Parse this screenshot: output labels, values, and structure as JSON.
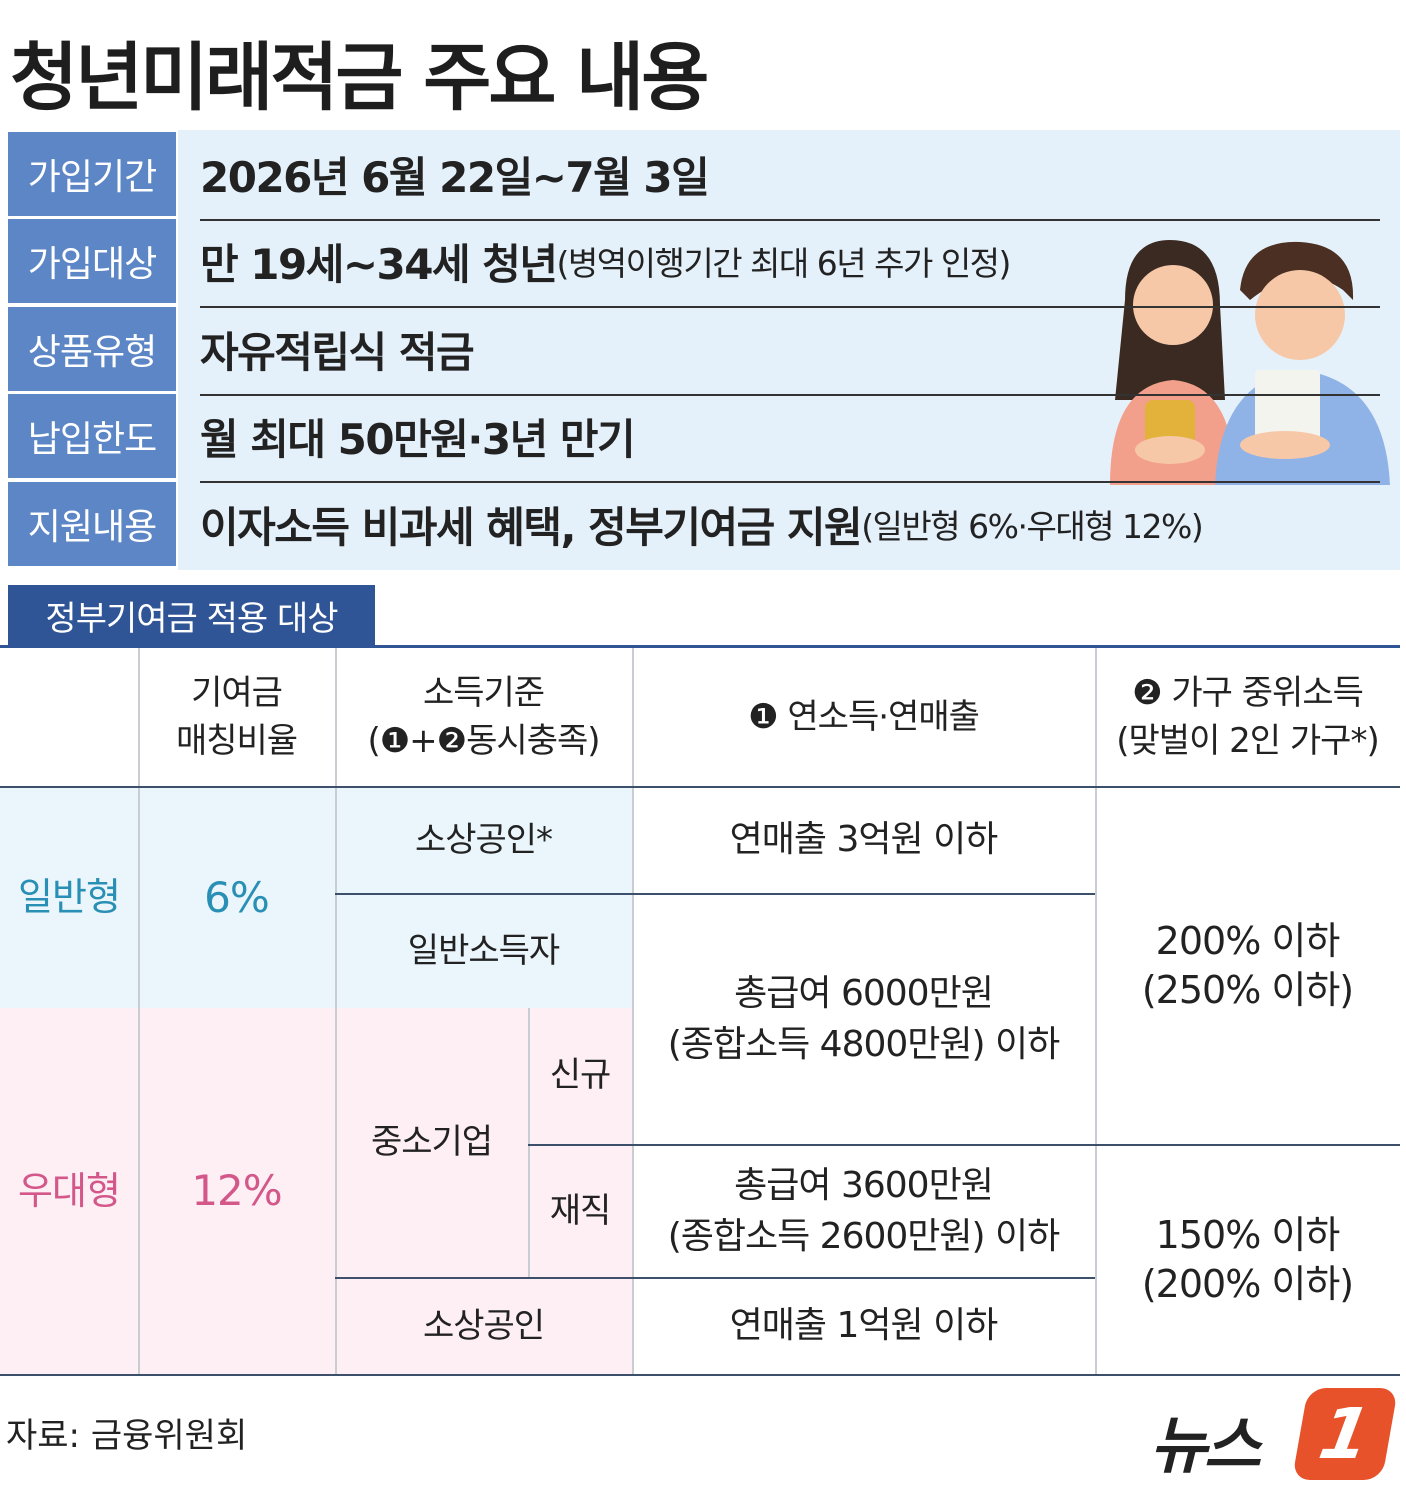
{
  "title": "청년미래적금 주요 내용",
  "summary": [
    {
      "label": "가입기간",
      "text": "2026년 6월 22일~7월 3일"
    },
    {
      "label": "가입대상",
      "text": "만 19세~34세 청년",
      "note": "(병역이행기간 최대 6년 추가 인정)"
    },
    {
      "label": "상품유형",
      "text": "자유적립식 적금"
    },
    {
      "label": "납입한도",
      "text": "월 최대 50만원·3년 만기"
    },
    {
      "label": "지원내용",
      "text": "이자소득 비과세 혜택, 정부기여금 지원",
      "note": "(일반형 6%·우대형 12%)"
    }
  ],
  "section_tab": "정부기여금 적용 대상",
  "table": {
    "header": [
      [
        "기여금",
        "매칭비율"
      ],
      [
        "소득기준",
        "(❶+❷동시충족)"
      ],
      [
        "❶ 연소득·연매출"
      ],
      [
        "❷ 가구 중위소득",
        "(맞벌이 2인 가구*)"
      ]
    ],
    "types": [
      {
        "name": "일반형",
        "rate": "6%"
      },
      {
        "name": "우대형",
        "rate": "12%"
      }
    ],
    "groups": [
      "소상공인*",
      "일반소득자",
      "중소기업",
      "신규",
      "재직",
      "소상공인"
    ],
    "income": [
      [
        "연매출 3억원 이하"
      ],
      [
        "총급여 6000만원",
        "(종합소득 4800만원) 이하"
      ],
      [
        "총급여 3600만원",
        "(종합소득 2600만원) 이하"
      ],
      [
        "연매출 1억원 이하"
      ]
    ],
    "median": [
      [
        "200% 이하",
        "(250% 이하)"
      ],
      [
        "150% 이하",
        "(200% 이하)"
      ]
    ]
  },
  "source": "자료: 금융위원회",
  "logo": {
    "text": "뉴스",
    "number": "1"
  }
}
